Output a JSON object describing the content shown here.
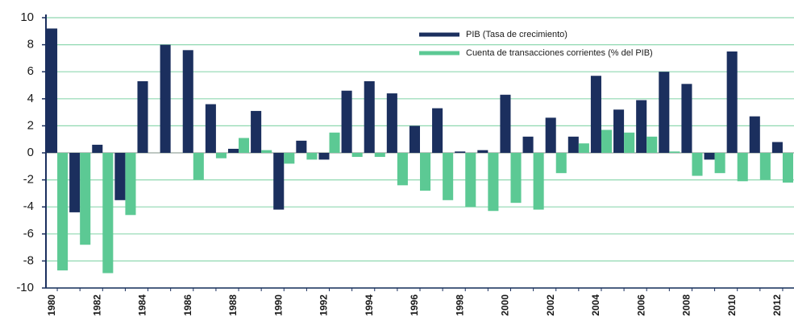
{
  "chart_data": {
    "type": "bar",
    "categories": [
      "1980",
      null,
      "1982",
      null,
      "1984",
      null,
      "1986",
      null,
      "1988",
      null,
      "1990",
      null,
      "1992",
      null,
      "1994",
      null,
      "1996",
      null,
      "1998",
      null,
      "2000",
      null,
      "2002",
      null,
      "2004",
      null,
      "2006",
      null,
      "2008",
      null,
      "2010",
      null,
      "2012"
    ],
    "series": [
      {
        "name": "PIB (Tasa de crecimiento)",
        "color": "#1b2f5e",
        "values": [
          9.2,
          -4.4,
          0.6,
          -3.5,
          5.3,
          8.0,
          7.6,
          3.6,
          0.3,
          3.1,
          -4.2,
          0.9,
          -0.5,
          4.6,
          5.3,
          4.4,
          2.0,
          3.3,
          0.1,
          0.2,
          4.3,
          1.2,
          2.6,
          1.2,
          5.7,
          3.2,
          3.9,
          6.0,
          5.1,
          -0.5,
          7.5,
          2.7,
          0.8
        ]
      },
      {
        "name": "Cuenta de transacciones corrientes (% del PIB)",
        "color": "#5cc994",
        "values": [
          -8.7,
          -6.8,
          -8.9,
          -4.6,
          0.0,
          0.0,
          -2.0,
          -0.4,
          1.1,
          0.2,
          -0.8,
          -0.5,
          1.5,
          -0.3,
          -0.3,
          -2.4,
          -2.8,
          -3.5,
          -4.0,
          -4.3,
          -3.7,
          -4.2,
          -1.5,
          0.7,
          1.7,
          1.5,
          1.2,
          0.1,
          -1.7,
          -1.5,
          -2.1,
          -2.0,
          -2.2
        ]
      }
    ],
    "ylim": [
      -10,
      10
    ],
    "yticks": [
      -10,
      -8,
      -6,
      -4,
      -2,
      0,
      2,
      4,
      6,
      8,
      10
    ],
    "grid": true,
    "legend": "top-right"
  }
}
